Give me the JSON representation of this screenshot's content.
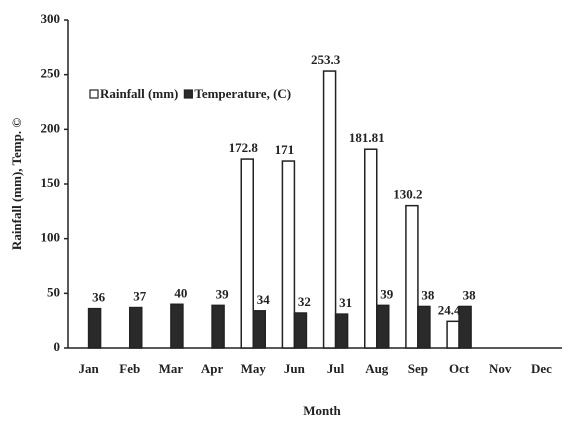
{
  "chart_data": {
    "type": "bar",
    "x_label": "Month",
    "y_label": "Rainfall (mm), Temp. ©",
    "categories": [
      "Jan",
      "Feb",
      "Mar",
      "Apr",
      "May",
      "Jun",
      "Jul",
      "Aug",
      "Sep",
      "Oct",
      "Nov",
      "Dec"
    ],
    "series": [
      {
        "name": "Rainfall (mm)",
        "color": "#ffffff",
        "values": [
          null,
          null,
          null,
          null,
          172.8,
          171,
          253.3,
          181.81,
          130.2,
          24.4,
          null,
          null
        ]
      },
      {
        "name": "Temperature, (C)",
        "color": "#2a2a2a",
        "values": [
          36,
          37,
          40,
          39,
          34,
          32,
          31,
          39,
          38,
          38,
          null,
          null
        ]
      }
    ],
    "ylim": [
      0,
      300
    ],
    "yticks": [
      0,
      50,
      100,
      150,
      200,
      250,
      300
    ],
    "legend": "upper left",
    "grid": false
  }
}
